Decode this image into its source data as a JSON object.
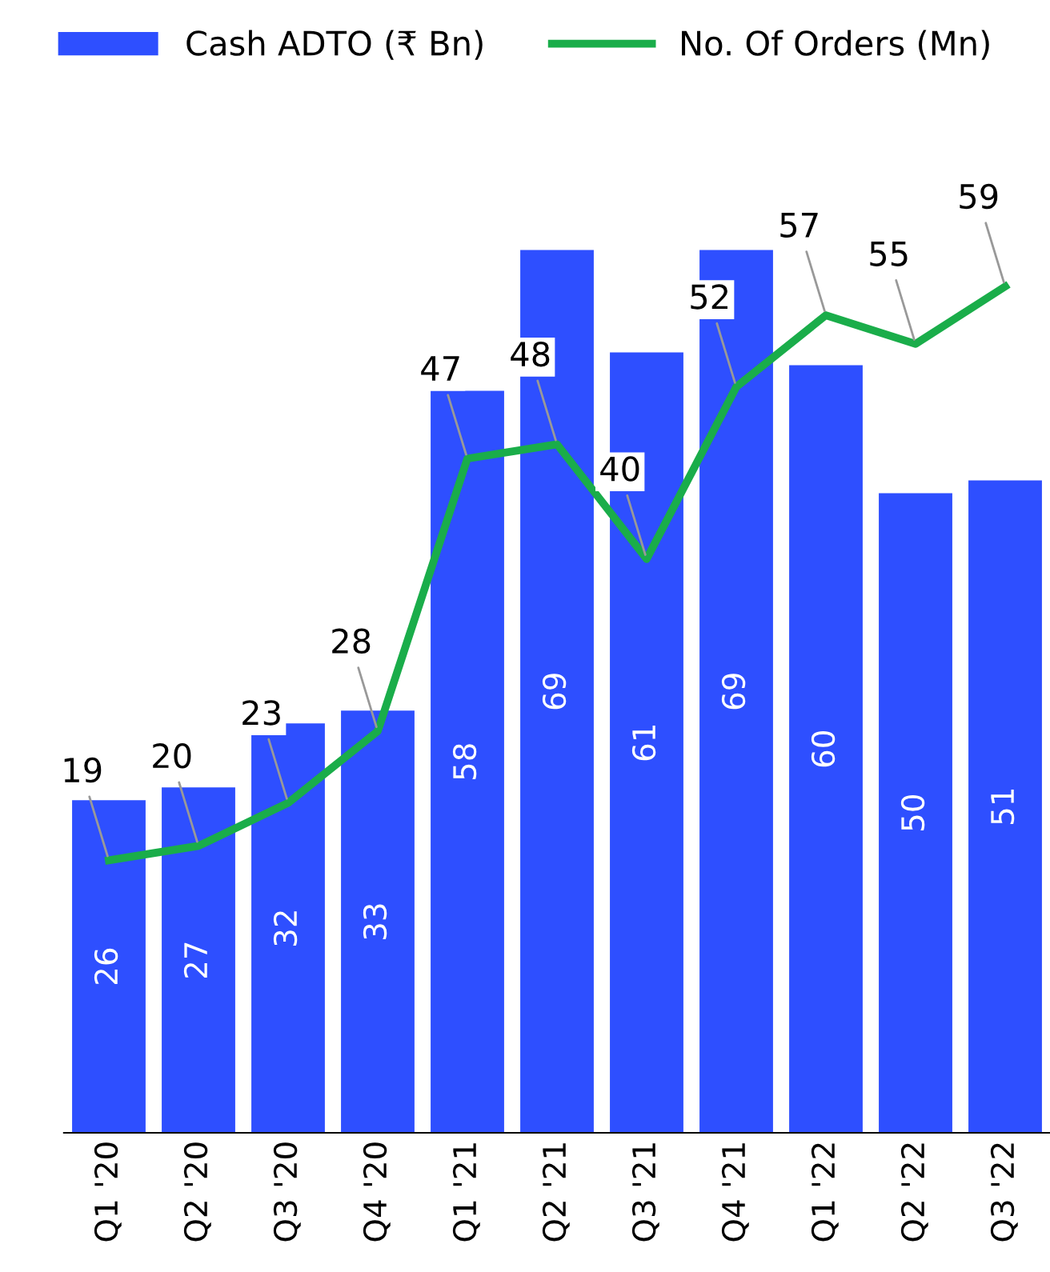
{
  "chart_data": {
    "type": "bar",
    "categories": [
      "Q1 '20",
      "Q2 '20",
      "Q3 '20",
      "Q4 '20",
      "Q1 '21",
      "Q2 '21",
      "Q3 '21",
      "Q4 '21",
      "Q1 '22",
      "Q2 '22",
      "Q3 '22"
    ],
    "series": [
      {
        "name": "Cash ADTO (₹ Bn)",
        "color": "#2e4fff",
        "values": [
          26,
          27,
          32,
          33,
          58,
          69,
          61,
          69,
          60,
          50,
          51
        ]
      },
      {
        "name": "No. Of Orders (Mn)",
        "type": "line",
        "axis": "y2",
        "color": "#1aad4a",
        "values": [
          19,
          20,
          23,
          28,
          47,
          48,
          40,
          52,
          57,
          55,
          59
        ]
      }
    ],
    "data_labels": true,
    "legend": "top",
    "tick_labels": "x",
    "marker": "none",
    "line_style": "solid",
    "grid": false
  }
}
